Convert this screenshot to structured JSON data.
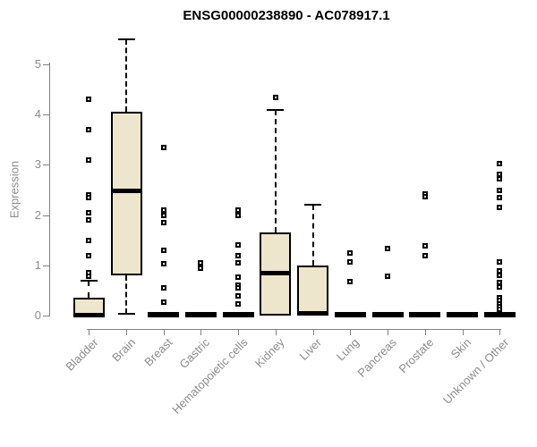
{
  "chart_data": {
    "type": "boxplot",
    "title": "ENSG00000238890 - AC078917.1",
    "ylabel": "Expression",
    "xlabel": "",
    "ylim": [
      0,
      5.6
    ],
    "yticks": [
      0,
      1,
      2,
      3,
      4,
      5
    ],
    "grid": false,
    "legend": "none",
    "x_label_rotation": 45,
    "categories": [
      "Bladder",
      "Brain",
      "Breast",
      "Gastric",
      "Hematopoietic cells",
      "Kidney",
      "Liver",
      "Lung",
      "Pancreas",
      "Prostate",
      "Skin",
      "Unknown / Other"
    ],
    "series": [
      {
        "category": "Bladder",
        "q1": 0,
        "median": 0.02,
        "q3": 0.35,
        "whisker_low": 0,
        "whisker_high": 0.7,
        "outliers": [
          4.3,
          3.7,
          3.1,
          2.4,
          2.35,
          2.05,
          1.9,
          1.5,
          1.2,
          0.85,
          0.78
        ]
      },
      {
        "category": "Brain",
        "q1": 0.8,
        "median": 2.5,
        "q3": 4.05,
        "whisker_low": 0.03,
        "whisker_high": 5.5,
        "outliers": []
      },
      {
        "category": "Breast",
        "q1": 0,
        "median": 0,
        "q3": 0,
        "whisker_low": 0,
        "whisker_high": 0,
        "outliers": [
          3.35,
          2.1,
          2.0,
          1.85,
          1.3,
          1.03,
          0.55,
          0.27
        ]
      },
      {
        "category": "Gastric",
        "q1": 0,
        "median": 0,
        "q3": 0,
        "whisker_low": 0,
        "whisker_high": 0,
        "outliers": [
          1.05,
          0.95
        ]
      },
      {
        "category": "Hematopoietic cells",
        "q1": 0,
        "median": 0,
        "q3": 0,
        "whisker_low": 0,
        "whisker_high": 0,
        "outliers": [
          2.1,
          2.0,
          1.4,
          1.2,
          1.05,
          0.77,
          0.6,
          0.55,
          0.4,
          0.23
        ]
      },
      {
        "category": "Kidney",
        "q1": 0,
        "median": 0.85,
        "q3": 1.65,
        "whisker_low": 0,
        "whisker_high": 4.1,
        "outliers": [
          4.35
        ]
      },
      {
        "category": "Liver",
        "q1": 0,
        "median": 0.05,
        "q3": 1.0,
        "whisker_low": 0,
        "whisker_high": 2.2,
        "outliers": []
      },
      {
        "category": "Lung",
        "q1": 0,
        "median": 0,
        "q3": 0,
        "whisker_low": 0,
        "whisker_high": 0,
        "outliers": [
          1.25,
          1.07,
          0.68
        ]
      },
      {
        "category": "Pancreas",
        "q1": 0,
        "median": 0,
        "q3": 0,
        "whisker_low": 0,
        "whisker_high": 0,
        "outliers": [
          1.33,
          0.78
        ]
      },
      {
        "category": "Prostate",
        "q1": 0,
        "median": 0,
        "q3": 0,
        "whisker_low": 0,
        "whisker_high": 0,
        "outliers": [
          2.42,
          2.36,
          1.38,
          1.2
        ]
      },
      {
        "category": "Skin",
        "q1": 0,
        "median": 0,
        "q3": 0,
        "whisker_low": 0,
        "whisker_high": 0,
        "outliers": []
      },
      {
        "category": "Unknown / Other",
        "q1": 0,
        "median": 0,
        "q3": 0,
        "whisker_low": 0,
        "whisker_high": 0,
        "outliers": [
          3.03,
          2.82,
          2.72,
          2.49,
          2.35,
          2.15,
          1.07,
          0.89,
          0.8,
          0.66,
          0.57,
          0.36,
          0.3,
          0.24,
          0.18,
          0.12
        ]
      }
    ],
    "colors": {
      "box_fill": "#ede6cd",
      "box_border": "#000000",
      "median": "#000000",
      "whisker": "#000000",
      "outlier_fill": "#ffffff",
      "outlier_border": "#000000",
      "axis_line": "#808080",
      "axis_text": "#8c8c8c",
      "title": "#000000",
      "background": "#ffffff"
    }
  }
}
